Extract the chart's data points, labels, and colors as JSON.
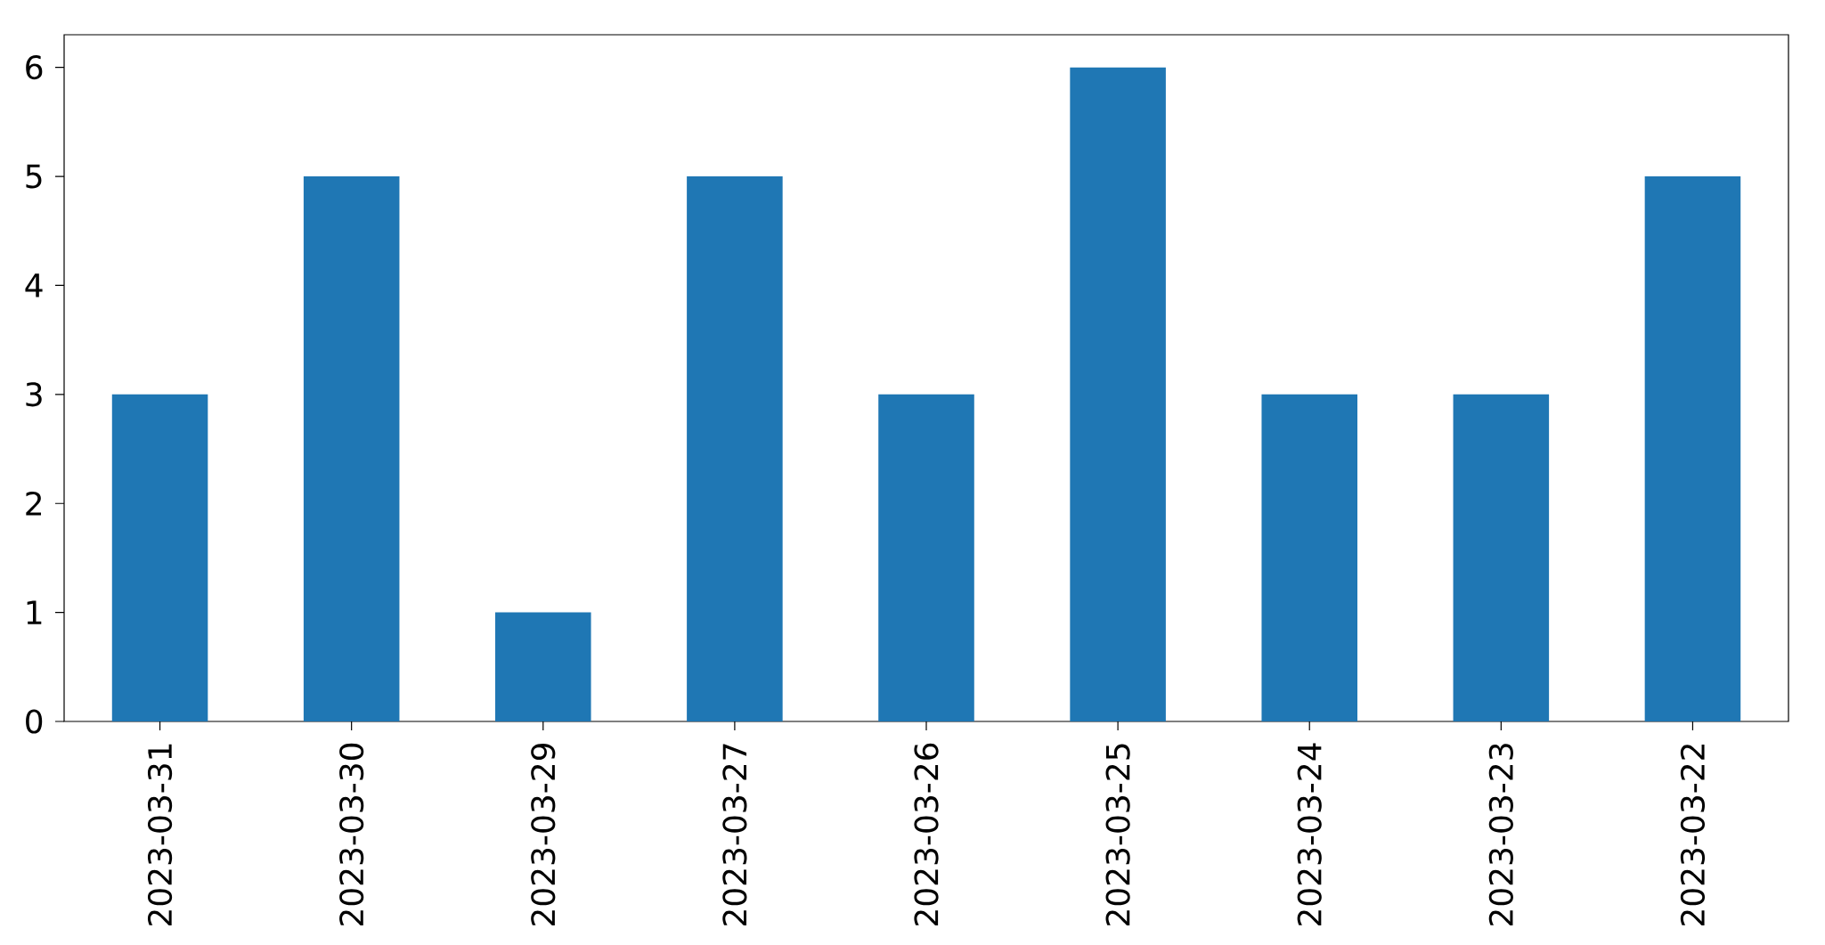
{
  "chart_data": {
    "type": "bar",
    "categories": [
      "2023-03-31",
      "2023-03-30",
      "2023-03-29",
      "2023-03-27",
      "2023-03-26",
      "2023-03-25",
      "2023-03-24",
      "2023-03-23",
      "2023-03-22"
    ],
    "values": [
      3,
      5,
      1,
      5,
      3,
      6,
      3,
      3,
      5
    ],
    "color": "#1f77b4",
    "ylim": [
      0,
      6.3
    ],
    "yticks": [
      0,
      1,
      2,
      3,
      4,
      5,
      6
    ]
  }
}
